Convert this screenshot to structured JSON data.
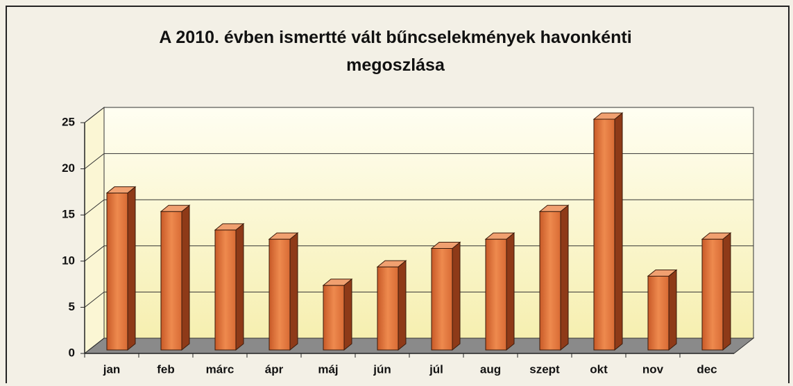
{
  "chart_data": {
    "type": "bar3d",
    "title": "A 2010. évben ismertté vált bűncselekmények havonkénti megoszlása",
    "categories": [
      "jan",
      "feb",
      "márc",
      "ápr",
      "máj",
      "jún",
      "júl",
      "aug",
      "szept",
      "okt",
      "nov",
      "dec"
    ],
    "values": [
      17,
      15,
      13,
      12,
      7,
      9,
      11,
      12,
      15,
      25,
      8,
      12
    ],
    "color": "#e0783c",
    "ylim": [
      0,
      25
    ],
    "yticks": [
      0,
      5,
      10,
      15,
      20,
      25
    ],
    "grid": true
  }
}
